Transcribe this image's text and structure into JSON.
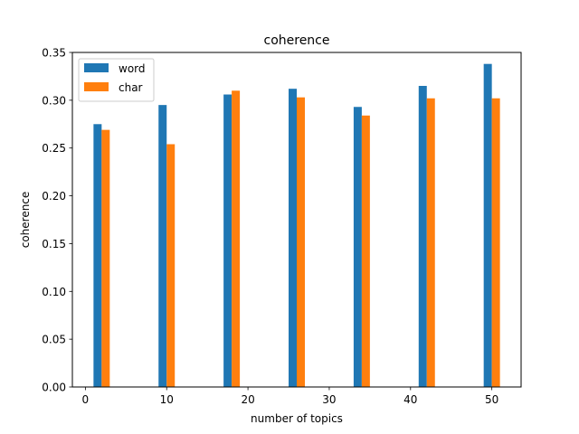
{
  "chart_data": {
    "type": "bar",
    "title": "coherence",
    "xlabel": "number of topics",
    "ylabel": "coherence",
    "xlim": [
      -1.6,
      53.6
    ],
    "ylim": [
      0.0,
      0.35
    ],
    "xticks": [
      0,
      10,
      20,
      30,
      40,
      50
    ],
    "xtick_labels": [
      "0",
      "10",
      "20",
      "30",
      "40",
      "50"
    ],
    "yticks": [
      0.0,
      0.05,
      0.1,
      0.15,
      0.2,
      0.25,
      0.3,
      0.35
    ],
    "ytick_labels": [
      "0.00",
      "0.05",
      "0.10",
      "0.15",
      "0.20",
      "0.25",
      "0.30",
      "0.35"
    ],
    "bar_width": 1.0,
    "grid": false,
    "legend_position": "upper-left",
    "series": [
      {
        "name": "word",
        "color": "#1f77b4",
        "x": [
          1.5,
          9.5,
          17.5,
          25.5,
          33.5,
          41.5,
          49.5
        ],
        "values": [
          0.275,
          0.295,
          0.306,
          0.312,
          0.293,
          0.315,
          0.338
        ]
      },
      {
        "name": "char",
        "color": "#ff7f0e",
        "x": [
          2.5,
          10.5,
          18.5,
          26.5,
          34.5,
          42.5,
          50.5
        ],
        "values": [
          0.269,
          0.254,
          0.31,
          0.303,
          0.284,
          0.302,
          0.302
        ]
      }
    ]
  }
}
